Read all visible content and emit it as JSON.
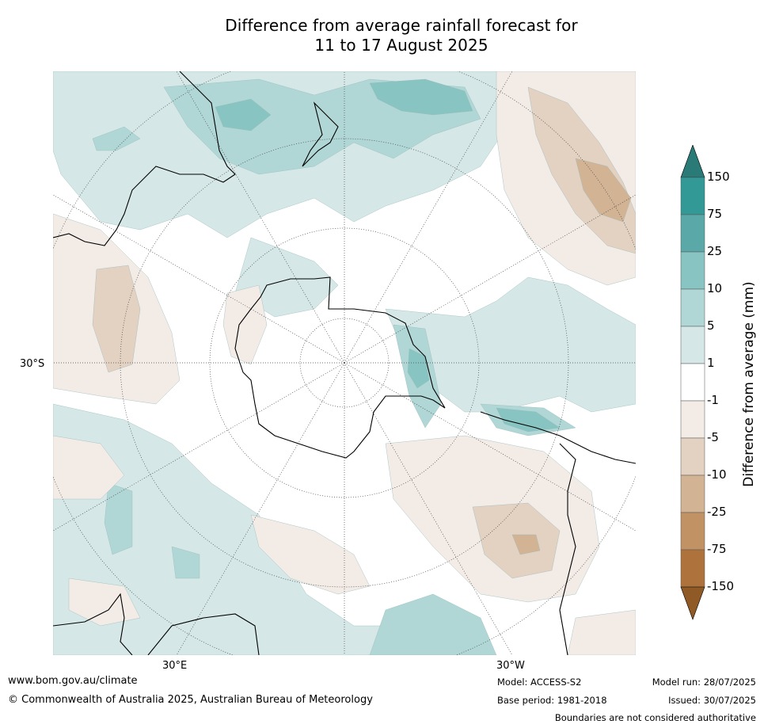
{
  "title_line1": "Difference from average rainfall forecast for",
  "title_line2": "11 to 17 August 2025",
  "map_labels": {
    "lat_30s": "30°S",
    "lon_30e": "30°E",
    "lon_30w": "30°W"
  },
  "colorbar": {
    "label": "Difference from average (mm)",
    "ticks": [
      "150",
      "75",
      "25",
      "10",
      "5",
      "1",
      "-1",
      "-5",
      "-10",
      "-25",
      "-75",
      "-150"
    ],
    "colors": {
      "over": "#2a7b78",
      "c75_150": "#329996",
      "c25_75": "#5aa9a8",
      "c10_25": "#88c4c1",
      "c5_10": "#b0d7d6",
      "c1_5": "#d5e8e7",
      "neutral": "#ffffff",
      "cm1_m5": "#f3ebe6",
      "cm5_m10": "#e3d1c2",
      "cm10_m25": "#d2b394",
      "cm25_m75": "#c09264",
      "cm75_m150": "#ae733c",
      "under": "#8f5a25"
    }
  },
  "footer": {
    "url": "www.bom.gov.au/climate",
    "copyright": "© Commonwealth of Australia 2025, Australian Bureau of Meteorology",
    "model": "Model: ACCESS-S2",
    "base_period": "Base period: 1981-2018",
    "model_run": "Model run: 28/07/2025",
    "issued": "Issued: 30/07/2025",
    "disclaimer": "Boundaries are not considered authoritative"
  }
}
